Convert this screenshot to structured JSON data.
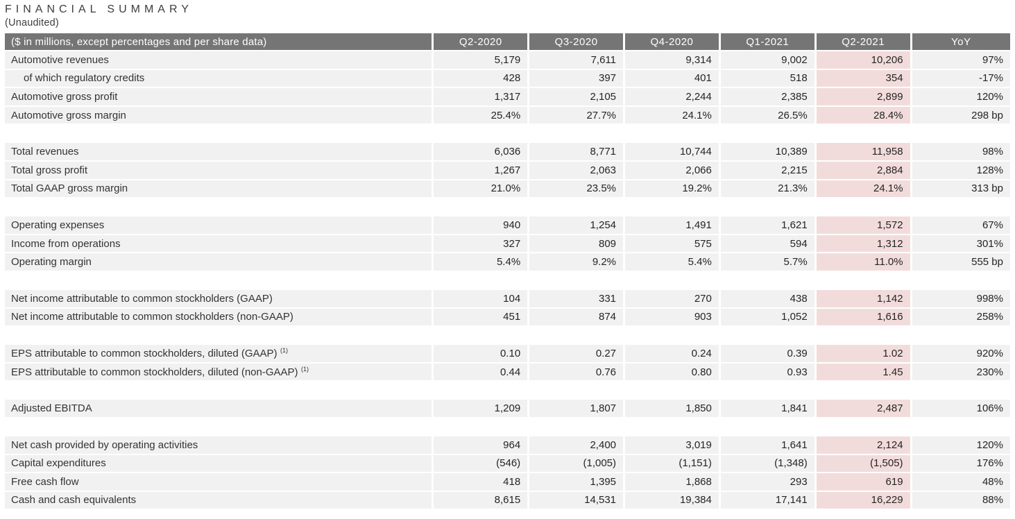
{
  "page": {
    "title": "FINANCIAL SUMMARY",
    "subtitle": "(Unaudited)"
  },
  "colors": {
    "header_bg": "#757575",
    "header_text": "#ffffff",
    "row_bg": "#f2f1f1",
    "highlight_bg": "#f2dcdb",
    "body_text": "#242424",
    "title_text": "#3d3d3d"
  },
  "chart_data": {
    "type": "table",
    "title": "FINANCIAL SUMMARY (Unaudited)",
    "label_header": "($ in millions, except percentages and per share data)",
    "columns": [
      "Q2-2020",
      "Q3-2020",
      "Q4-2020",
      "Q1-2021",
      "Q2-2021",
      "YoY"
    ],
    "highlight_column": "Q2-2021",
    "highlight_column_index": 4,
    "groups": [
      {
        "rows": [
          {
            "label": "Automotive revenues",
            "indent": false,
            "footnote": "",
            "values": [
              "5,179",
              "7,611",
              "9,314",
              "9,002",
              "10,206",
              "97%"
            ]
          },
          {
            "label": "of which regulatory credits",
            "indent": true,
            "footnote": "",
            "values": [
              "428",
              "397",
              "401",
              "518",
              "354",
              "-17%"
            ]
          },
          {
            "label": "Automotive gross profit",
            "indent": false,
            "footnote": "",
            "values": [
              "1,317",
              "2,105",
              "2,244",
              "2,385",
              "2,899",
              "120%"
            ]
          },
          {
            "label": "Automotive gross margin",
            "indent": false,
            "footnote": "",
            "values": [
              "25.4%",
              "27.7%",
              "24.1%",
              "26.5%",
              "28.4%",
              "298 bp"
            ]
          }
        ]
      },
      {
        "rows": [
          {
            "label": "Total revenues",
            "indent": false,
            "footnote": "",
            "values": [
              "6,036",
              "8,771",
              "10,744",
              "10,389",
              "11,958",
              "98%"
            ]
          },
          {
            "label": "Total gross profit",
            "indent": false,
            "footnote": "",
            "values": [
              "1,267",
              "2,063",
              "2,066",
              "2,215",
              "2,884",
              "128%"
            ]
          },
          {
            "label": "Total GAAP gross margin",
            "indent": false,
            "footnote": "",
            "values": [
              "21.0%",
              "23.5%",
              "19.2%",
              "21.3%",
              "24.1%",
              "313 bp"
            ]
          }
        ]
      },
      {
        "rows": [
          {
            "label": "Operating expenses",
            "indent": false,
            "footnote": "",
            "values": [
              "940",
              "1,254",
              "1,491",
              "1,621",
              "1,572",
              "67%"
            ]
          },
          {
            "label": "Income from operations",
            "indent": false,
            "footnote": "",
            "values": [
              "327",
              "809",
              "575",
              "594",
              "1,312",
              "301%"
            ]
          },
          {
            "label": "Operating margin",
            "indent": false,
            "footnote": "",
            "values": [
              "5.4%",
              "9.2%",
              "5.4%",
              "5.7%",
              "11.0%",
              "555 bp"
            ]
          }
        ]
      },
      {
        "rows": [
          {
            "label": "Net income attributable to common stockholders (GAAP)",
            "indent": false,
            "footnote": "",
            "values": [
              "104",
              "331",
              "270",
              "438",
              "1,142",
              "998%"
            ]
          },
          {
            "label": "Net income attributable to common stockholders (non-GAAP)",
            "indent": false,
            "footnote": "",
            "values": [
              "451",
              "874",
              "903",
              "1,052",
              "1,616",
              "258%"
            ]
          }
        ]
      },
      {
        "rows": [
          {
            "label": "EPS attributable to common stockholders, diluted (GAAP)",
            "indent": false,
            "footnote": "(1)",
            "values": [
              "0.10",
              "0.27",
              "0.24",
              "0.39",
              "1.02",
              "920%"
            ]
          },
          {
            "label": "EPS attributable to common stockholders, diluted (non-GAAP)",
            "indent": false,
            "footnote": "(1)",
            "values": [
              "0.44",
              "0.76",
              "0.80",
              "0.93",
              "1.45",
              "230%"
            ]
          }
        ]
      },
      {
        "rows": [
          {
            "label": "Adjusted EBITDA",
            "indent": false,
            "footnote": "",
            "values": [
              "1,209",
              "1,807",
              "1,850",
              "1,841",
              "2,487",
              "106%"
            ]
          }
        ]
      },
      {
        "rows": [
          {
            "label": "Net cash provided by operating activities",
            "indent": false,
            "footnote": "",
            "values": [
              "964",
              "2,400",
              "3,019",
              "1,641",
              "2,124",
              "120%"
            ]
          },
          {
            "label": "Capital expenditures",
            "indent": false,
            "footnote": "",
            "values": [
              "(546)",
              "(1,005)",
              "(1,151)",
              "(1,348)",
              "(1,505)",
              "176%"
            ]
          },
          {
            "label": "Free cash flow",
            "indent": false,
            "footnote": "",
            "values": [
              "418",
              "1,395",
              "1,868",
              "293",
              "619",
              "48%"
            ]
          },
          {
            "label": "Cash and cash equivalents",
            "indent": false,
            "footnote": "",
            "values": [
              "8,615",
              "14,531",
              "19,384",
              "17,141",
              "16,229",
              "88%"
            ]
          }
        ]
      }
    ]
  }
}
